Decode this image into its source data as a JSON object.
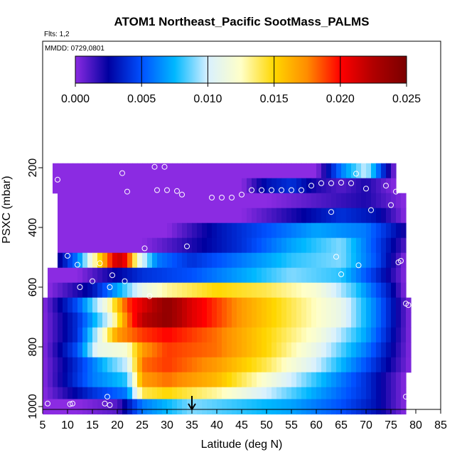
{
  "chart_data": {
    "type": "heatmap",
    "title": "ATOM1 Northeast_Pacific SootMass_PALMS",
    "subtitle_flights": "Flts: 1,2",
    "subtitle_dates": "MMDD: 0729,0801",
    "xlabel": "Latitude (deg N)",
    "ylabel": "PSXC (mbar)",
    "xlim": [
      5,
      85
    ],
    "ylim": [
      1000,
      200
    ],
    "x_ticks": [
      "5",
      "10",
      "15",
      "20",
      "25",
      "30",
      "35",
      "40",
      "45",
      "50",
      "55",
      "60",
      "65",
      "70",
      "75",
      "80",
      "85"
    ],
    "y_ticks": [
      "200",
      "400",
      "600",
      "800",
      "1000"
    ],
    "colorbar": {
      "range": [
        0.0,
        0.025
      ],
      "tick_labels": [
        "0.000",
        "0.005",
        "0.010",
        "0.015",
        "0.020",
        "0.025"
      ],
      "colors": [
        "#8b2be2",
        "#0000a0",
        "#0050ff",
        "#00b8ff",
        "#d8f0ff",
        "#ffffc8",
        "#ffd700",
        "#ff8c00",
        "#ff0000",
        "#b00000",
        "#7a0000"
      ]
    },
    "marker_latitude": 35,
    "pressure_layers": [
      {
        "p": 210,
        "lat": [
          7,
          76
        ],
        "lat_vals": [
          7,
          40,
          60,
          65,
          70,
          74,
          76
        ],
        "vals": [
          0.0,
          0.0,
          0.0,
          0.006,
          0.01,
          0.003,
          0.0
        ]
      },
      {
        "p": 260,
        "lat": [
          7,
          76
        ],
        "lat_vals": [
          7,
          45,
          50,
          55,
          60,
          65,
          70,
          76
        ],
        "vals": [
          0.0,
          0.0,
          0.003,
          0.004,
          0.002,
          0.001,
          0.002,
          0.0
        ]
      },
      {
        "p": 310,
        "lat": [
          8,
          78
        ],
        "lat_vals": [
          8,
          50,
          60,
          70,
          78
        ],
        "vals": [
          0.0,
          0.0,
          0.001,
          0.002,
          0.0
        ]
      },
      {
        "p": 360,
        "lat": [
          8,
          78
        ],
        "lat_vals": [
          8,
          45,
          55,
          65,
          72,
          78
        ],
        "vals": [
          0.0,
          0.0,
          0.002,
          0.004,
          0.003,
          0.0
        ]
      },
      {
        "p": 410,
        "lat": [
          8,
          78
        ],
        "lat_vals": [
          8,
          30,
          40,
          50,
          60,
          70,
          78
        ],
        "vals": [
          0.0,
          0.0,
          0.003,
          0.005,
          0.007,
          0.006,
          0.002
        ]
      },
      {
        "p": 460,
        "lat": [
          8,
          78
        ],
        "lat_vals": [
          8,
          25,
          35,
          45,
          55,
          65,
          70,
          78
        ],
        "vals": [
          0.0,
          0.0,
          0.002,
          0.004,
          0.007,
          0.009,
          0.006,
          0.001
        ]
      },
      {
        "p": 510,
        "lat": [
          8,
          78
        ],
        "lat_vals": [
          8,
          12,
          16,
          20,
          22,
          24,
          28,
          35,
          45,
          55,
          65,
          72,
          78
        ],
        "vals": [
          0.002,
          0.006,
          0.014,
          0.022,
          0.02,
          0.012,
          0.006,
          0.004,
          0.006,
          0.008,
          0.009,
          0.005,
          0.0
        ]
      },
      {
        "p": 560,
        "lat": [
          6,
          78
        ],
        "lat_vals": [
          6,
          12,
          18,
          25,
          35,
          45,
          55,
          65,
          72,
          78
        ],
        "vals": [
          0.0,
          0.0,
          0.002,
          0.004,
          0.005,
          0.007,
          0.009,
          0.008,
          0.004,
          0.0
        ]
      },
      {
        "p": 610,
        "lat": [
          6,
          78
        ],
        "lat_vals": [
          6,
          15,
          20,
          25,
          30,
          40,
          50,
          60,
          68,
          75,
          78
        ],
        "vals": [
          0.0,
          0.003,
          0.007,
          0.011,
          0.013,
          0.015,
          0.014,
          0.012,
          0.008,
          0.003,
          0.0
        ]
      },
      {
        "p": 660,
        "lat": [
          5,
          79
        ],
        "lat_vals": [
          5,
          12,
          18,
          22,
          25,
          30,
          35,
          45,
          55,
          65,
          72,
          79
        ],
        "vals": [
          0.0,
          0.005,
          0.012,
          0.019,
          0.021,
          0.024,
          0.021,
          0.017,
          0.014,
          0.011,
          0.006,
          0.0
        ]
      },
      {
        "p": 710,
        "lat": [
          5,
          79
        ],
        "lat_vals": [
          5,
          12,
          18,
          22,
          25,
          30,
          35,
          45,
          55,
          65,
          72,
          79
        ],
        "vals": [
          0.0,
          0.004,
          0.01,
          0.018,
          0.022,
          0.024,
          0.021,
          0.017,
          0.014,
          0.011,
          0.006,
          0.0
        ]
      },
      {
        "p": 760,
        "lat": [
          5,
          79
        ],
        "lat_vals": [
          5,
          12,
          16,
          20,
          25,
          30,
          40,
          50,
          60,
          70,
          79
        ],
        "vals": [
          0.0,
          0.004,
          0.01,
          0.017,
          0.019,
          0.02,
          0.018,
          0.015,
          0.012,
          0.007,
          0.0
        ]
      },
      {
        "p": 810,
        "lat": [
          5,
          79
        ],
        "lat_vals": [
          5,
          12,
          16,
          22,
          25,
          30,
          40,
          50,
          60,
          70,
          79
        ],
        "vals": [
          0.0,
          0.005,
          0.011,
          0.012,
          0.017,
          0.019,
          0.018,
          0.015,
          0.011,
          0.006,
          0.0
        ]
      },
      {
        "p": 860,
        "lat": [
          5,
          79
        ],
        "lat_vals": [
          5,
          12,
          18,
          22,
          25,
          30,
          40,
          50,
          60,
          70,
          79
        ],
        "vals": [
          0.0,
          0.004,
          0.008,
          0.01,
          0.018,
          0.019,
          0.017,
          0.014,
          0.01,
          0.005,
          0.0
        ]
      },
      {
        "p": 910,
        "lat": [
          5,
          78
        ],
        "lat_vals": [
          5,
          10,
          15,
          22,
          25,
          30,
          40,
          50,
          60,
          70,
          78
        ],
        "vals": [
          0.0,
          0.003,
          0.006,
          0.008,
          0.017,
          0.018,
          0.016,
          0.012,
          0.008,
          0.004,
          0.0
        ]
      },
      {
        "p": 960,
        "lat": [
          5,
          78
        ],
        "lat_vals": [
          5,
          10,
          15,
          22,
          25,
          30,
          40,
          50,
          60,
          70,
          78
        ],
        "vals": [
          0.0,
          0.002,
          0.004,
          0.006,
          0.014,
          0.015,
          0.013,
          0.01,
          0.007,
          0.004,
          0.0
        ]
      },
      {
        "p": 1000,
        "lat": [
          5,
          78
        ],
        "lat_vals": [
          5,
          12,
          20,
          25,
          35,
          45,
          55,
          65,
          72,
          78
        ],
        "vals": [
          0.0,
          0.0,
          0.001,
          0.006,
          0.009,
          0.008,
          0.007,
          0.005,
          0.003,
          0.0
        ]
      }
    ],
    "sample_points": [
      {
        "lat": 6,
        "p": 990
      },
      {
        "lat": 11,
        "p": 990
      },
      {
        "lat": 10.5,
        "p": 992
      },
      {
        "lat": 17.5,
        "p": 990
      },
      {
        "lat": 18,
        "p": 967
      },
      {
        "lat": 18.5,
        "p": 995
      },
      {
        "lat": 6,
        "p": 515
      },
      {
        "lat": 10,
        "p": 495
      },
      {
        "lat": 12,
        "p": 525
      },
      {
        "lat": 12.5,
        "p": 600
      },
      {
        "lat": 15,
        "p": 580
      },
      {
        "lat": 16.5,
        "p": 520
      },
      {
        "lat": 18.5,
        "p": 600
      },
      {
        "lat": 19,
        "p": 560
      },
      {
        "lat": 21.5,
        "p": 580
      },
      {
        "lat": 25.5,
        "p": 470
      },
      {
        "lat": 26.5,
        "p": 630
      },
      {
        "lat": 34,
        "p": 463
      },
      {
        "lat": 8,
        "p": 240
      },
      {
        "lat": 21,
        "p": 218
      },
      {
        "lat": 22,
        "p": 280
      },
      {
        "lat": 27.5,
        "p": 197
      },
      {
        "lat": 29.5,
        "p": 197
      },
      {
        "lat": 28,
        "p": 275
      },
      {
        "lat": 30,
        "p": 275
      },
      {
        "lat": 32,
        "p": 278
      },
      {
        "lat": 33,
        "p": 290
      },
      {
        "lat": 39,
        "p": 300
      },
      {
        "lat": 41,
        "p": 300
      },
      {
        "lat": 43,
        "p": 300
      },
      {
        "lat": 45,
        "p": 290
      },
      {
        "lat": 47,
        "p": 275
      },
      {
        "lat": 49,
        "p": 275
      },
      {
        "lat": 51,
        "p": 275
      },
      {
        "lat": 53,
        "p": 275
      },
      {
        "lat": 55,
        "p": 275
      },
      {
        "lat": 57,
        "p": 275
      },
      {
        "lat": 59,
        "p": 260
      },
      {
        "lat": 61,
        "p": 252
      },
      {
        "lat": 63,
        "p": 252
      },
      {
        "lat": 65,
        "p": 250
      },
      {
        "lat": 67,
        "p": 252
      },
      {
        "lat": 68,
        "p": 220
      },
      {
        "lat": 70,
        "p": 270
      },
      {
        "lat": 71,
        "p": 342
      },
      {
        "lat": 74,
        "p": 260
      },
      {
        "lat": 75,
        "p": 325
      },
      {
        "lat": 76,
        "p": 280
      },
      {
        "lat": 63,
        "p": 348
      },
      {
        "lat": 64,
        "p": 498
      },
      {
        "lat": 65,
        "p": 557
      },
      {
        "lat": 68.5,
        "p": 527
      },
      {
        "lat": 76.5,
        "p": 517
      },
      {
        "lat": 77,
        "p": 512
      },
      {
        "lat": 78,
        "p": 655
      },
      {
        "lat": 78.5,
        "p": 660
      },
      {
        "lat": 78,
        "p": 967
      }
    ]
  }
}
